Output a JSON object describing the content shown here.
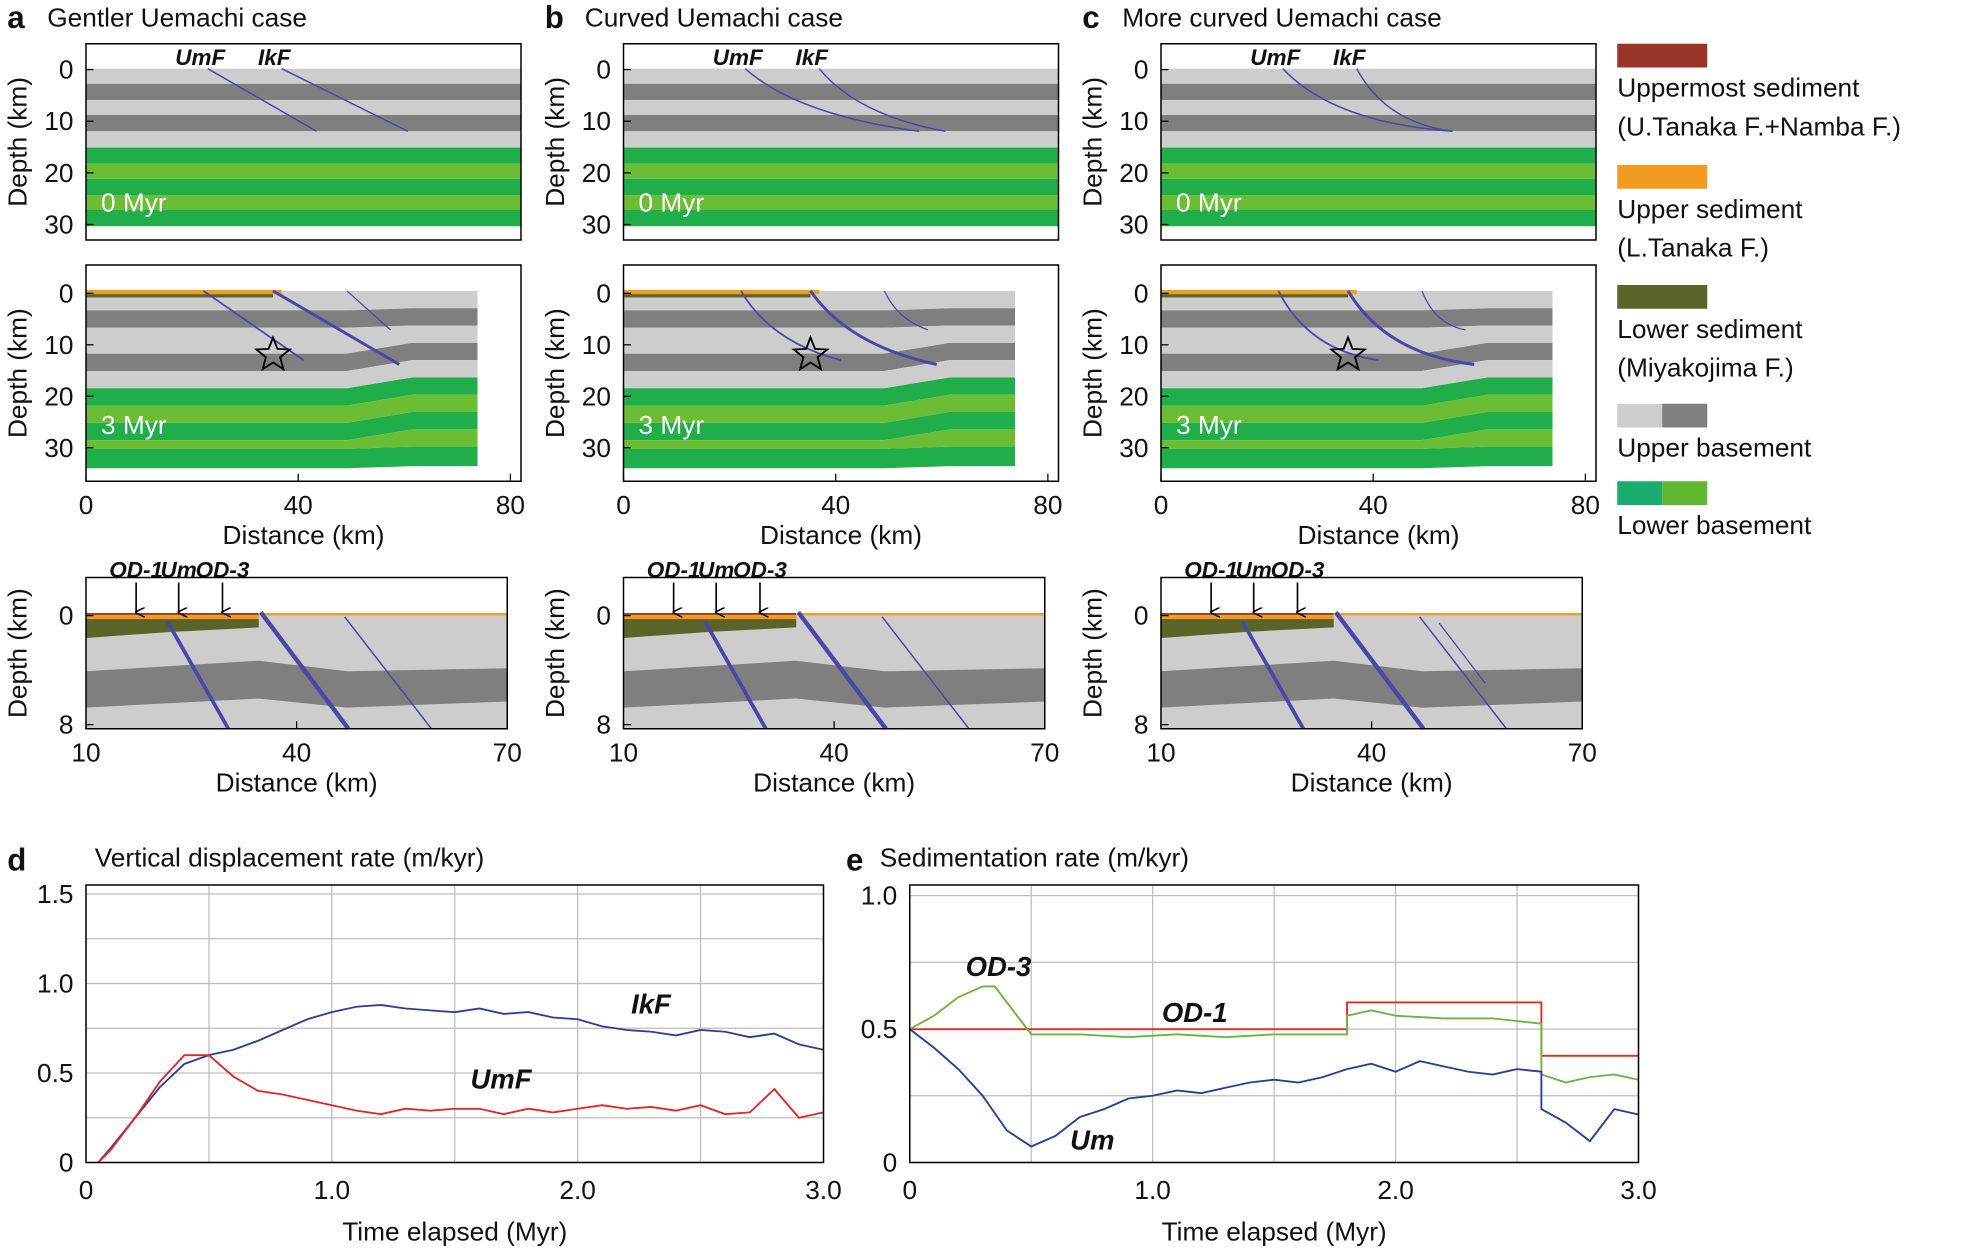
{
  "chart_data": [
    {
      "type": "section",
      "panel_label": "a",
      "title": "Gentler Uemachi case",
      "ylabel": "Depth (km)",
      "xlim": [
        0,
        82
      ],
      "ylim": [
        -5,
        33
      ],
      "yticks": [
        0,
        10,
        20,
        30
      ],
      "fault_labels": [
        "UmF",
        "IkF"
      ],
      "time_label": "0 Myr"
    },
    {
      "type": "section",
      "ylabel": "Depth (km)",
      "xlabel": "Distance (km)",
      "xlim": [
        0,
        82
      ],
      "ylim": [
        -5.5,
        36.5
      ],
      "xticks": [
        0,
        40,
        80
      ],
      "yticks": [
        0,
        10,
        20,
        30
      ],
      "time_label": "3 Myr"
    },
    {
      "type": "section",
      "ylabel": "Depth (km)",
      "xlabel": "Distance (km)",
      "xlim": [
        10,
        70
      ],
      "ylim": [
        -2.8,
        8.3
      ],
      "xticks": [
        10,
        40,
        70
      ],
      "yticks": [
        0,
        8
      ],
      "well_labels": [
        "OD-1",
        "Um",
        "OD-3"
      ]
    },
    {
      "type": "section",
      "panel_label": "b",
      "title": "Curved Uemachi case",
      "ylabel": "Depth (km)",
      "xlim": [
        0,
        82
      ],
      "ylim": [
        -5,
        33
      ],
      "yticks": [
        0,
        10,
        20,
        30
      ],
      "fault_labels": [
        "UmF",
        "IkF"
      ],
      "time_label": "0 Myr"
    },
    {
      "type": "section",
      "ylabel": "Depth (km)",
      "xlabel": "Distance (km)",
      "xlim": [
        0,
        82
      ],
      "ylim": [
        -5.5,
        36.5
      ],
      "xticks": [
        0,
        40,
        80
      ],
      "yticks": [
        0,
        10,
        20,
        30
      ],
      "time_label": "3 Myr"
    },
    {
      "type": "section",
      "ylabel": "Depth (km)",
      "xlabel": "Distance (km)",
      "xlim": [
        10,
        70
      ],
      "ylim": [
        -2.8,
        8.3
      ],
      "xticks": [
        10,
        40,
        70
      ],
      "yticks": [
        0,
        8
      ],
      "well_labels": [
        "OD-1",
        "Um",
        "OD-3"
      ]
    },
    {
      "type": "section",
      "panel_label": "c",
      "title": "More curved Uemachi case",
      "ylabel": "Depth (km)",
      "xlim": [
        0,
        82
      ],
      "ylim": [
        -5,
        33
      ],
      "yticks": [
        0,
        10,
        20,
        30
      ],
      "fault_labels": [
        "UmF",
        "IkF"
      ],
      "time_label": "0 Myr"
    },
    {
      "type": "section",
      "ylabel": "Depth (km)",
      "xlabel": "Distance (km)",
      "xlim": [
        0,
        82
      ],
      "ylim": [
        -5.5,
        36.5
      ],
      "xticks": [
        0,
        40,
        80
      ],
      "yticks": [
        0,
        10,
        20,
        30
      ],
      "time_label": "3 Myr"
    },
    {
      "type": "section",
      "ylabel": "Depth (km)",
      "xlabel": "Distance (km)",
      "xlim": [
        10,
        70
      ],
      "ylim": [
        -2.8,
        8.3
      ],
      "xticks": [
        10,
        40,
        70
      ],
      "yticks": [
        0,
        8
      ],
      "well_labels": [
        "OD-1",
        "Um",
        "OD-3"
      ]
    },
    {
      "type": "line",
      "panel_label": "d",
      "title": "Vertical displacement rate (m/kyr)",
      "xlabel": "Time elapsed (Myr)",
      "grid": true,
      "xlim": [
        0,
        3
      ],
      "ylim": [
        0,
        1.55
      ],
      "xticks": [
        0,
        {
          "value": 1,
          "label": "1.0"
        },
        {
          "value": 2,
          "label": "2.0"
        },
        {
          "value": 3,
          "label": "3.0"
        }
      ],
      "xminor": [
        0.5,
        1.5,
        2.5
      ],
      "yticks": [
        0,
        0.5,
        {
          "value": 1,
          "label": "1.0"
        },
        1.5
      ],
      "yminor": [
        0.25,
        0.75,
        1.25
      ],
      "series": [
        {
          "name": "IkF",
          "color": "#2b3f97",
          "x": [
            0.05,
            0.1,
            0.2,
            0.3,
            0.4,
            0.5,
            0.6,
            0.7,
            0.8,
            0.9,
            1.0,
            1.1,
            1.2,
            1.3,
            1.4,
            1.5,
            1.6,
            1.7,
            1.8,
            1.9,
            2.0,
            2.1,
            2.2,
            2.3,
            2.4,
            2.5,
            2.6,
            2.7,
            2.8,
            2.9,
            3.0
          ],
          "values": [
            0,
            0.08,
            0.25,
            0.42,
            0.55,
            0.6,
            0.63,
            0.68,
            0.74,
            0.8,
            0.84,
            0.87,
            0.88,
            0.86,
            0.85,
            0.84,
            0.86,
            0.83,
            0.84,
            0.81,
            0.8,
            0.76,
            0.74,
            0.73,
            0.71,
            0.74,
            0.73,
            0.7,
            0.72,
            0.66,
            0.63
          ]
        },
        {
          "name": "UmF",
          "color": "#e02626",
          "x": [
            0.05,
            0.1,
            0.2,
            0.3,
            0.4,
            0.5,
            0.6,
            0.7,
            0.8,
            0.9,
            1.0,
            1.1,
            1.2,
            1.3,
            1.4,
            1.5,
            1.6,
            1.7,
            1.8,
            1.9,
            2.0,
            2.1,
            2.2,
            2.3,
            2.4,
            2.5,
            2.6,
            2.7,
            2.8,
            2.9,
            3.0
          ],
          "values": [
            0,
            0.07,
            0.25,
            0.45,
            0.6,
            0.6,
            0.48,
            0.4,
            0.38,
            0.35,
            0.32,
            0.29,
            0.27,
            0.3,
            0.29,
            0.3,
            0.3,
            0.27,
            0.3,
            0.28,
            0.3,
            0.32,
            0.3,
            0.31,
            0.29,
            0.32,
            0.27,
            0.28,
            0.41,
            0.25,
            0.28
          ]
        }
      ]
    },
    {
      "type": "line",
      "panel_label": "e",
      "title": "Sedimentation rate (m/kyr)",
      "xlabel": "Time elapsed (Myr)",
      "grid": true,
      "xlim": [
        0,
        3
      ],
      "ylim": [
        0,
        1.04
      ],
      "xticks": [
        0,
        {
          "value": 1,
          "label": "1.0"
        },
        {
          "value": 2,
          "label": "2.0"
        },
        {
          "value": 3,
          "label": "3.0"
        }
      ],
      "xminor": [
        0.5,
        1.5,
        2.5
      ],
      "yticks": [
        0,
        0.5,
        {
          "value": 1,
          "label": "1.0"
        }
      ],
      "yminor": [
        0.25,
        0.75
      ],
      "series": [
        {
          "name": "OD-1",
          "color": "#e52a1f",
          "x": [
            0,
            1.8,
            1.8,
            2.6,
            2.6,
            3.0
          ],
          "values": [
            0.5,
            0.5,
            0.6,
            0.6,
            0.4,
            0.4
          ]
        },
        {
          "name": "OD-3",
          "color": "#6db33f",
          "x": [
            0,
            0.1,
            0.2,
            0.3,
            0.35,
            0.4,
            0.5,
            0.7,
            0.9,
            1.1,
            1.3,
            1.5,
            1.7,
            1.8,
            1.8,
            1.9,
            2.0,
            2.2,
            2.4,
            2.6,
            2.6,
            2.7,
            2.8,
            2.9,
            3.0
          ],
          "values": [
            0.5,
            0.55,
            0.62,
            0.66,
            0.66,
            0.6,
            0.48,
            0.48,
            0.47,
            0.48,
            0.47,
            0.48,
            0.48,
            0.48,
            0.55,
            0.57,
            0.55,
            0.54,
            0.54,
            0.52,
            0.33,
            0.3,
            0.32,
            0.33,
            0.31
          ]
        },
        {
          "name": "Um",
          "color": "#23409a",
          "x": [
            0,
            0.1,
            0.2,
            0.3,
            0.4,
            0.5,
            0.6,
            0.7,
            0.8,
            0.9,
            1.0,
            1.1,
            1.2,
            1.3,
            1.4,
            1.5,
            1.6,
            1.7,
            1.8,
            1.9,
            2.0,
            2.1,
            2.2,
            2.3,
            2.4,
            2.5,
            2.6,
            2.6,
            2.7,
            2.8,
            2.9,
            3.0
          ],
          "values": [
            0.5,
            0.43,
            0.35,
            0.25,
            0.12,
            0.06,
            0.1,
            0.17,
            0.2,
            0.24,
            0.25,
            0.27,
            0.26,
            0.28,
            0.3,
            0.31,
            0.3,
            0.32,
            0.35,
            0.37,
            0.34,
            0.38,
            0.36,
            0.34,
            0.33,
            0.35,
            0.34,
            0.2,
            0.15,
            0.08,
            0.2,
            0.18
          ]
        }
      ]
    }
  ],
  "legend": {
    "items": [
      {
        "lines": [
          "Uppermost sediment",
          "(U.Tanaka F.+Namba F.)"
        ],
        "colors": [
          "#983528"
        ]
      },
      {
        "lines": [
          "Upper sediment",
          "(L.Tanaka F.)"
        ],
        "colors": [
          "#f39b1f"
        ]
      },
      {
        "lines": [
          "Lower sediment",
          "(Miyakojima F.)"
        ],
        "colors": [
          "#5a6428"
        ]
      },
      {
        "lines": [
          "Upper basement"
        ],
        "colors": [
          "#cdcdcd",
          "#7f7f7f"
        ]
      },
      {
        "lines": [
          "Lower basement"
        ],
        "colors": [
          "#1aab6e",
          "#5fb82e"
        ]
      }
    ]
  }
}
